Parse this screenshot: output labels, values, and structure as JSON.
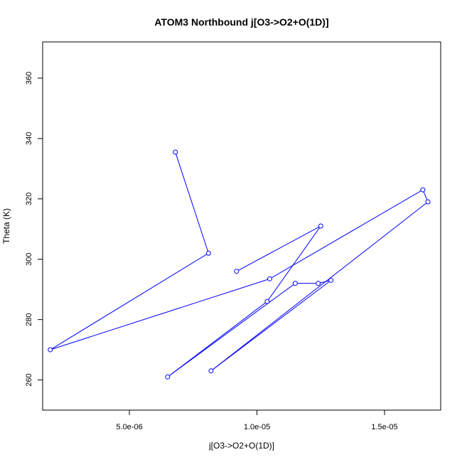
{
  "chart_data": {
    "type": "line",
    "title": "ATOM3 Northbound j[O3->O2+O(1D)]",
    "xlabel": "j[O3->O2+O(1D)]",
    "ylabel": "Theta (K)",
    "xlim": [
      1.6e-06,
      1.72e-05
    ],
    "ylim": [
      250,
      372
    ],
    "x_ticks": [
      5e-06,
      1e-05,
      1.5e-05
    ],
    "x_tick_labels": [
      "5.0e-06",
      "1.0e-05",
      "1.5e-05"
    ],
    "y_ticks": [
      260,
      280,
      300,
      320,
      340,
      360
    ],
    "y_tick_labels": [
      "260",
      "280",
      "300",
      "320",
      "340",
      "360"
    ],
    "grid": false,
    "series": [
      {
        "color": "#0000ff",
        "marker": "open-circle",
        "x": [
          6.8e-06,
          8.1e-06,
          1.9e-06,
          1.05e-05,
          1.65e-05,
          1.67e-05,
          8.2e-06,
          1.29e-05,
          1.24e-05,
          1.15e-05,
          6.5e-06,
          1.04e-05,
          1.25e-05,
          9.2e-06
        ],
        "y": [
          335.5,
          302,
          270,
          293.5,
          323,
          319,
          263,
          293,
          292,
          292,
          261,
          286,
          311,
          296
        ]
      }
    ]
  }
}
